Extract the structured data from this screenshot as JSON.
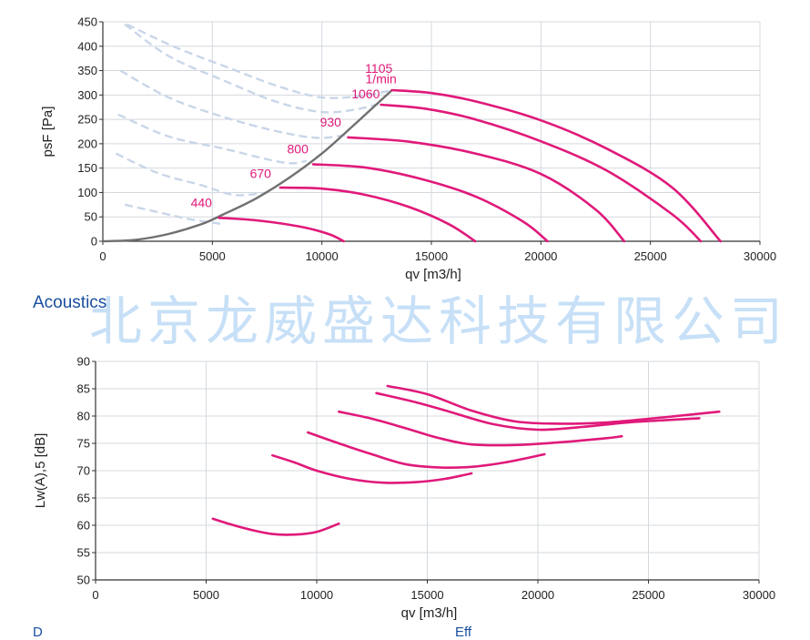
{
  "section_title": "Acoustics",
  "watermark_text": "北京龙威盛达科技有限公司",
  "footer_left": "D",
  "footer_right": "Eff",
  "colors": {
    "curve": "#e0197a",
    "system": "#707070",
    "dashed": "#c9d6e8",
    "grid": "#d4d8de",
    "label": "#e0197a"
  },
  "chart_data": [
    {
      "type": "line",
      "xlabel": "qv [m3/h]",
      "ylabel": "psF [Pa]",
      "xlim": [
        0,
        30000
      ],
      "ylim": [
        0,
        450
      ],
      "xticks": [
        0,
        5000,
        10000,
        15000,
        20000,
        25000,
        30000
      ],
      "yticks": [
        0,
        50,
        100,
        150,
        200,
        250,
        300,
        350,
        400,
        450
      ],
      "grid": true,
      "speed_labels": [
        {
          "text": "440",
          "x": 4500,
          "y": 70
        },
        {
          "text": "670",
          "x": 7200,
          "y": 130
        },
        {
          "text": "800",
          "x": 8900,
          "y": 180
        },
        {
          "text": "930",
          "x": 10400,
          "y": 235
        },
        {
          "text": "1060",
          "x": 12000,
          "y": 293
        },
        {
          "text": "1105",
          "x": 12600,
          "y": 345
        },
        {
          "text": "1/min",
          "x": 12700,
          "y": 324
        }
      ],
      "series": [
        {
          "x": [
            5300,
            7000,
            9000,
            10300,
            11000
          ],
          "y": [
            48,
            43,
            30,
            15,
            0
          ]
        },
        {
          "x": [
            8100,
            10000,
            12000,
            14000,
            15800,
            17000
          ],
          "y": [
            110,
            108,
            95,
            70,
            35,
            0
          ]
        },
        {
          "x": [
            9600,
            12000,
            14500,
            17000,
            19200,
            20300
          ],
          "y": [
            158,
            151,
            128,
            92,
            40,
            0
          ]
        },
        {
          "x": [
            11200,
            14000,
            17000,
            20000,
            22500,
            23800
          ],
          "y": [
            213,
            204,
            180,
            138,
            65,
            0
          ]
        },
        {
          "x": [
            12700,
            14700,
            17000,
            20000,
            23000,
            26000,
            27300
          ],
          "y": [
            280,
            272,
            250,
            205,
            145,
            55,
            0
          ]
        },
        {
          "x": [
            13200,
            15000,
            17000,
            20000,
            23000,
            26000,
            28200
          ],
          "y": [
            310,
            304,
            287,
            248,
            190,
            110,
            0
          ]
        }
      ],
      "system_curve": {
        "x": [
          0,
          1500,
          3000,
          4500,
          5500,
          7000,
          8500,
          10000,
          11500,
          13200
        ],
        "y": [
          0,
          3,
          15,
          35,
          55,
          88,
          130,
          180,
          240,
          310
        ]
      },
      "dashed_curves": [
        {
          "x": [
            1000,
            2500,
            4000,
            5500
          ],
          "y": [
            75,
            60,
            45,
            35
          ]
        },
        {
          "x": [
            600,
            2500,
            4500,
            6000,
            7500
          ],
          "y": [
            180,
            140,
            115,
            95,
            100
          ]
        },
        {
          "x": [
            700,
            3000,
            5500,
            7500,
            8600,
            9300
          ],
          "y": [
            260,
            215,
            190,
            168,
            160,
            165
          ]
        },
        {
          "x": [
            800,
            3000,
            5500,
            8000,
            9800,
            11100
          ],
          "y": [
            350,
            295,
            255,
            225,
            212,
            218
          ]
        },
        {
          "x": [
            1000,
            3000,
            5500,
            8000,
            10000,
            11500,
            12600
          ],
          "y": [
            445,
            380,
            330,
            285,
            265,
            270,
            282
          ]
        },
        {
          "x": [
            1100,
            3200,
            5500,
            8000,
            10000,
            11800,
            13200
          ],
          "y": [
            445,
            400,
            360,
            318,
            295,
            298,
            310
          ]
        }
      ]
    },
    {
      "type": "line",
      "title": "Acoustics",
      "xlabel": "qv [m3/h]",
      "ylabel": "Lw(A),5 [dB]",
      "xlim": [
        0,
        30000
      ],
      "ylim": [
        50,
        90
      ],
      "xticks": [
        0,
        5000,
        10000,
        15000,
        20000,
        25000,
        30000
      ],
      "yticks": [
        50,
        55,
        60,
        65,
        70,
        75,
        80,
        85,
        90
      ],
      "grid": true,
      "series": [
        {
          "x": [
            5300,
            6000,
            7000,
            8000,
            9000,
            10000,
            11000
          ],
          "y": [
            61.2,
            60.3,
            59.2,
            58.4,
            58.3,
            58.8,
            60.3
          ]
        },
        {
          "x": [
            8000,
            9000,
            10000,
            11500,
            13000,
            14500,
            15800,
            17000
          ],
          "y": [
            72.8,
            71.5,
            70.0,
            68.5,
            67.8,
            67.9,
            68.5,
            69.5
          ]
        },
        {
          "x": [
            9600,
            11000,
            12500,
            14000,
            15500,
            17000,
            18500,
            20300
          ],
          "y": [
            77.0,
            75.0,
            73.0,
            71.2,
            70.6,
            70.7,
            71.5,
            73.0
          ]
        },
        {
          "x": [
            11000,
            12500,
            14000,
            15500,
            17000,
            19000,
            21000,
            23000,
            23800
          ],
          "y": [
            80.8,
            79.5,
            77.8,
            76.0,
            74.8,
            74.7,
            75.2,
            75.9,
            76.3
          ]
        },
        {
          "x": [
            12700,
            14500,
            16000,
            18000,
            20000,
            22000,
            24000,
            26000,
            27300
          ],
          "y": [
            84.2,
            82.5,
            80.8,
            78.5,
            77.5,
            78.0,
            78.8,
            79.3,
            79.6
          ]
        },
        {
          "x": [
            13200,
            15000,
            17000,
            19000,
            21000,
            23000,
            25000,
            27000,
            28200
          ],
          "y": [
            85.5,
            84.0,
            81.0,
            79.0,
            78.6,
            78.8,
            79.5,
            80.3,
            80.8
          ]
        }
      ]
    }
  ]
}
